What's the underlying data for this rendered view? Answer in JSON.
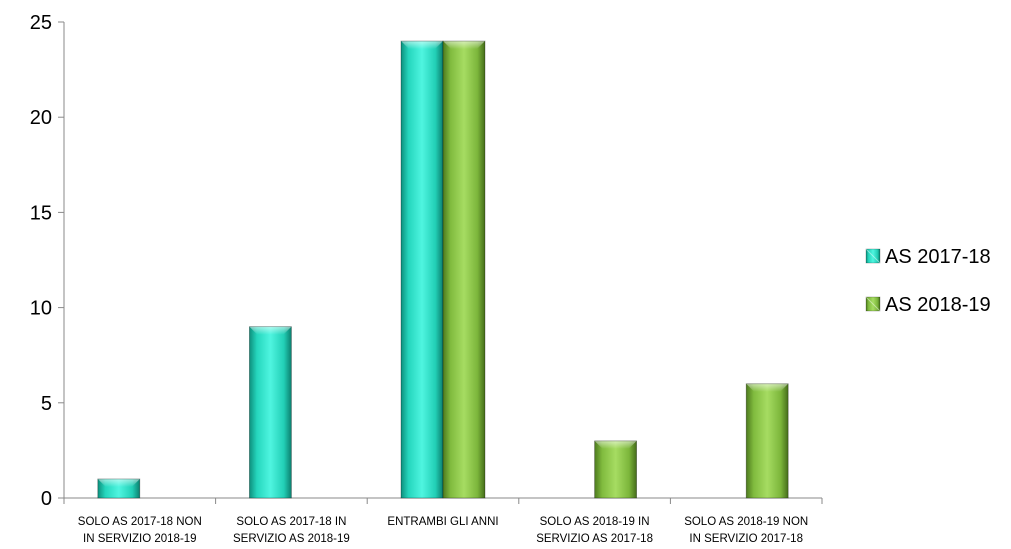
{
  "chart_data": {
    "type": "bar",
    "categories": [
      [
        "SOLO AS 2017-18 NON",
        "IN SERVIZIO 2018-19"
      ],
      [
        "SOLO AS 2017-18 IN",
        "SERVIZIO AS 2018-19"
      ],
      [
        "ENTRAMBI GLI ANNI"
      ],
      [
        "SOLO AS 2018-19 IN",
        "SERVIZIO AS 2017-18"
      ],
      [
        "SOLO AS 2018-19 NON",
        "IN SERVIZIO 2017-18"
      ]
    ],
    "series": [
      {
        "name": "AS 2017-18",
        "values": [
          1,
          9,
          24,
          null,
          null
        ],
        "color": "#2ee6cc"
      },
      {
        "name": "AS 2018-19",
        "values": [
          null,
          null,
          24,
          3,
          6
        ],
        "color": "#8fcc4a"
      }
    ],
    "title": "",
    "xlabel": "",
    "ylabel": "",
    "ylim": [
      0,
      25
    ],
    "yticks": [
      0,
      5,
      10,
      15,
      20,
      25
    ],
    "grid": false,
    "legend_position": "right"
  }
}
